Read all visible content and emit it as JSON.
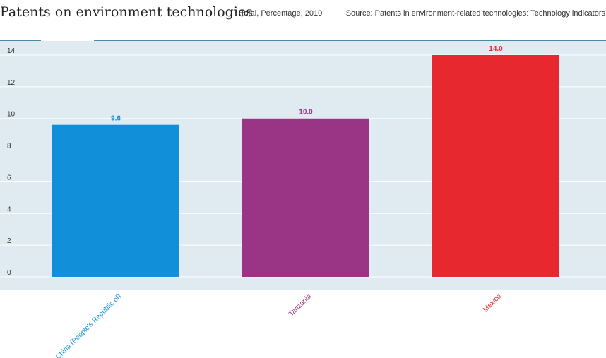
{
  "header": {
    "title": "Patents on environment technologies",
    "subtitle": "Total, Percentage, 2010",
    "source": "Source: Patents in environment-related technologies: Technology indicators"
  },
  "chart_data": {
    "type": "bar",
    "title": "Patents on environment technologies",
    "subtitle": "Total, Percentage, 2010",
    "xlabel": "",
    "ylabel": "",
    "ylim": [
      0,
      14
    ],
    "yticks": [
      0,
      2,
      4,
      6,
      8,
      10,
      12,
      14
    ],
    "grid": true,
    "legend": "none",
    "categories": [
      "China (People's Republic of)",
      "Tanzania",
      "Mexico"
    ],
    "values": [
      9.6,
      10.0,
      14.0
    ],
    "value_labels": [
      "9.6",
      "10.0",
      "14.0"
    ],
    "colors": [
      "#1190d9",
      "#993584",
      "#e8282f"
    ],
    "label_colors": [
      "#1190d9",
      "#993584",
      "#e8282f"
    ],
    "background": "#dfeaf1",
    "gridline_color": "#ffffff",
    "axis_text_color": "#333333"
  }
}
